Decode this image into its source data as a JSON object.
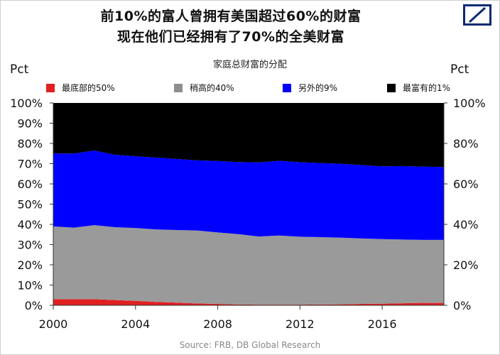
{
  "titles": {
    "line1": "前10%的富人曾拥有美国超过60%的财富",
    "line2": "现在他们已经拥有了70%的全美财富"
  },
  "axis_unit_label": "Pct",
  "source": "Source: FRB, DB Global Research",
  "chart_data": {
    "type": "area",
    "stacked": true,
    "title": "家庭总财富的分配",
    "xlabel": "",
    "ylabel": "Pct",
    "x": [
      2000,
      2001,
      2002,
      2003,
      2004,
      2005,
      2006,
      2007,
      2008,
      2009,
      2010,
      2011,
      2012,
      2013,
      2014,
      2015,
      2016,
      2017,
      2018,
      2019
    ],
    "xlim": [
      2000,
      2019
    ],
    "x_ticks": [
      "2000",
      "2004",
      "2008",
      "2012",
      "2016"
    ],
    "y_ticks_left": [
      "0%",
      "10%",
      "20%",
      "30%",
      "40%",
      "50%",
      "60%",
      "70%",
      "80%",
      "90%",
      "100%"
    ],
    "y_ticks_right": [
      "0%",
      "20%",
      "40%",
      "60%",
      "80%",
      "100%"
    ],
    "ylim": [
      0,
      100
    ],
    "legend_position": "top",
    "series": [
      {
        "name": "最底部的50%",
        "color": "#e02020",
        "values": [
          3.0,
          3.0,
          3.0,
          2.6,
          2.2,
          1.7,
          1.3,
          0.9,
          0.7,
          0.4,
          0.3,
          0.3,
          0.3,
          0.4,
          0.5,
          0.7,
          0.8,
          1.0,
          1.2,
          1.2
        ]
      },
      {
        "name": "稍高的40%",
        "color": "#9a9a9a",
        "values": [
          36.0,
          35.4,
          36.6,
          36.0,
          36.0,
          35.8,
          35.9,
          36.1,
          35.3,
          34.8,
          33.7,
          34.2,
          33.6,
          33.3,
          32.9,
          32.3,
          31.9,
          31.5,
          31.1,
          31.1
        ]
      },
      {
        "name": "另外的9%",
        "color": "#0000ff",
        "values": [
          36.0,
          36.6,
          36.9,
          35.8,
          35.5,
          35.5,
          35.1,
          34.6,
          35.3,
          35.6,
          36.6,
          36.9,
          36.8,
          36.6,
          36.5,
          36.3,
          36.0,
          36.3,
          36.2,
          36.0
        ]
      },
      {
        "name": "最富有的1%",
        "color": "#000000",
        "values": [
          25.0,
          25.0,
          23.5,
          25.6,
          26.3,
          27.0,
          27.7,
          28.4,
          28.7,
          29.2,
          29.4,
          28.6,
          29.3,
          29.7,
          30.1,
          30.7,
          31.3,
          31.2,
          31.5,
          31.7
        ]
      }
    ]
  }
}
